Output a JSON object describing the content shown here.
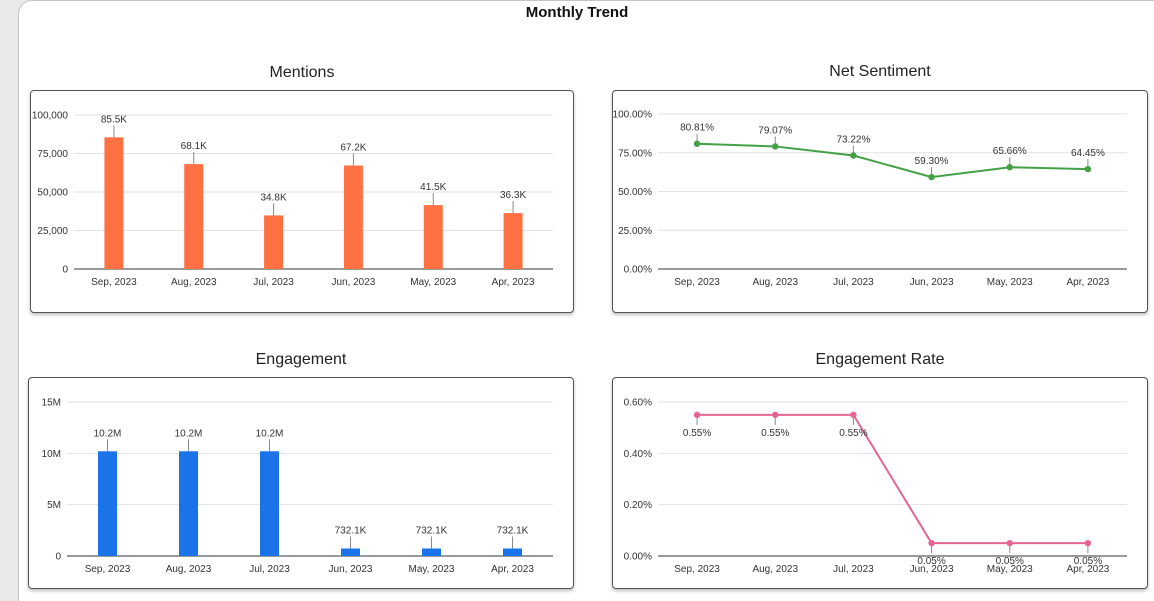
{
  "page": {
    "title": "Monthly Trend"
  },
  "chart_data": [
    {
      "id": "mentions",
      "type": "bar",
      "title": "Mentions",
      "categories": [
        "Sep, 2023",
        "Aug, 2023",
        "Jul, 2023",
        "Jun, 2023",
        "May, 2023",
        "Apr, 2023"
      ],
      "values": [
        85500,
        68100,
        34800,
        67200,
        41500,
        36300
      ],
      "data_labels": [
        "85.5K",
        "68.1K",
        "34.8K",
        "67.2K",
        "41.5K",
        "36.3K"
      ],
      "ylim": [
        0,
        100000
      ],
      "yticks": [
        0,
        25000,
        50000,
        75000,
        100000
      ],
      "ytick_labels": [
        "0",
        "25,000",
        "50,000",
        "75,000",
        "100,000"
      ],
      "color": "#FF7043",
      "grid": true
    },
    {
      "id": "net-sentiment",
      "type": "line",
      "title": "Net Sentiment",
      "categories": [
        "Sep, 2023",
        "Aug, 2023",
        "Jul, 2023",
        "Jun, 2023",
        "May, 2023",
        "Apr, 2023"
      ],
      "values": [
        80.81,
        79.07,
        73.22,
        59.3,
        65.66,
        64.45
      ],
      "data_labels": [
        "80.81%",
        "79.07%",
        "73.22%",
        "59.30%",
        "65.66%",
        "64.45%"
      ],
      "ylim": [
        0,
        100
      ],
      "yticks": [
        0,
        25,
        50,
        75,
        100
      ],
      "ytick_labels": [
        "0.00%",
        "25.00%",
        "50.00%",
        "75.00%",
        "100.00%"
      ],
      "color": "#43A047",
      "grid": true
    },
    {
      "id": "engagement",
      "type": "bar",
      "title": "Engagement",
      "categories": [
        "Sep, 2023",
        "Aug, 2023",
        "Jul, 2023",
        "Jun, 2023",
        "May, 2023",
        "Apr, 2023"
      ],
      "values": [
        10200000,
        10200000,
        10200000,
        732100,
        732100,
        732100
      ],
      "data_labels": [
        "10.2M",
        "10.2M",
        "10.2M",
        "732.1K",
        "732.1K",
        "732.1K"
      ],
      "ylim": [
        0,
        15000000
      ],
      "yticks": [
        0,
        5000000,
        10000000,
        15000000
      ],
      "ytick_labels": [
        "0",
        "5M",
        "10M",
        "15M"
      ],
      "color": "#1A73E8",
      "grid": true
    },
    {
      "id": "engagement-rate",
      "type": "line",
      "title": "Engagement Rate",
      "categories": [
        "Sep, 2023",
        "Aug, 2023",
        "Jul, 2023",
        "Jun, 2023",
        "May, 2023",
        "Apr, 2023"
      ],
      "values": [
        0.55,
        0.55,
        0.55,
        0.05,
        0.05,
        0.05
      ],
      "data_labels": [
        "0.55%",
        "0.55%",
        "0.55%",
        "0.05%",
        "0.05%",
        "0.05%"
      ],
      "ylim": [
        0,
        0.6
      ],
      "yticks": [
        0,
        0.2,
        0.4,
        0.6
      ],
      "ytick_labels": [
        "0.00%",
        "0.20%",
        "0.40%",
        "0.60%"
      ],
      "label_position": "below",
      "color": "#E5658F",
      "grid": true
    }
  ]
}
